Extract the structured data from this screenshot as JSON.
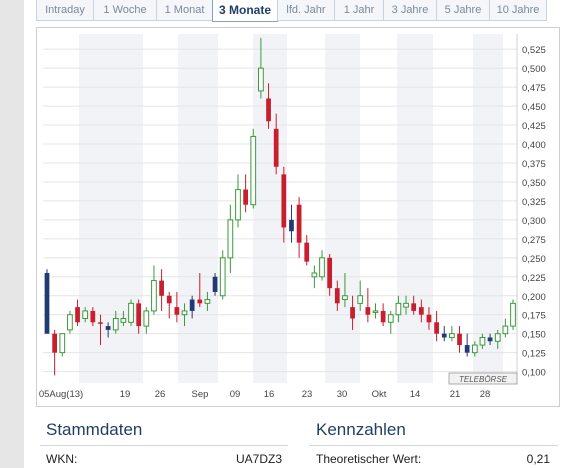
{
  "tabs": [
    {
      "label": "Intraday",
      "active": false
    },
    {
      "label": "1 Woche",
      "active": false
    },
    {
      "label": "1 Monat",
      "active": false
    },
    {
      "label": "3 Monate",
      "active": true
    },
    {
      "label": "lfd. Jahr",
      "active": false
    },
    {
      "label": "1 Jahr",
      "active": false
    },
    {
      "label": "3 Jahre",
      "active": false
    },
    {
      "label": "5 Jahre",
      "active": false
    },
    {
      "label": "10 Jahre",
      "active": false
    }
  ],
  "chart": {
    "watermark": "TELEBÖRSE"
  },
  "chart_data": {
    "type": "candlestick",
    "title": "",
    "xlabel": "",
    "ylabel": "",
    "ylim": [
      0.085,
      0.545
    ],
    "y_ticks": [
      "0,100",
      "0,125",
      "0,150",
      "0,175",
      "0,200",
      "0,225",
      "0,250",
      "0,275",
      "0,300",
      "0,325",
      "0,350",
      "0,375",
      "0,400",
      "0,425",
      "0,450",
      "0,475",
      "0,500",
      "0,525"
    ],
    "x_ticks": [
      "05Aug(13)",
      "19",
      "26",
      "Sep",
      "09",
      "16",
      "23",
      "30",
      "Okt",
      "14",
      "21",
      "28"
    ],
    "colors": {
      "up": "#3a9a3a",
      "down": "#c81e2d",
      "neutral": "#223a73"
    },
    "candles": [
      {
        "o": 0.23,
        "h": 0.235,
        "l": 0.15,
        "c": 0.15,
        "t": "n"
      },
      {
        "o": 0.15,
        "h": 0.155,
        "l": 0.095,
        "c": 0.125,
        "t": "d"
      },
      {
        "o": 0.125,
        "h": 0.15,
        "l": 0.12,
        "c": 0.15,
        "t": "u"
      },
      {
        "o": 0.155,
        "h": 0.18,
        "l": 0.15,
        "c": 0.175,
        "t": "u"
      },
      {
        "o": 0.185,
        "h": 0.195,
        "l": 0.16,
        "c": 0.165,
        "t": "d"
      },
      {
        "o": 0.17,
        "h": 0.185,
        "l": 0.165,
        "c": 0.18,
        "t": "u"
      },
      {
        "o": 0.18,
        "h": 0.185,
        "l": 0.16,
        "c": 0.165,
        "t": "d"
      },
      {
        "o": 0.165,
        "h": 0.175,
        "l": 0.135,
        "c": 0.165,
        "t": "d"
      },
      {
        "o": 0.16,
        "h": 0.165,
        "l": 0.145,
        "c": 0.155,
        "t": "n"
      },
      {
        "o": 0.155,
        "h": 0.18,
        "l": 0.15,
        "c": 0.17,
        "t": "u"
      },
      {
        "o": 0.17,
        "h": 0.18,
        "l": 0.16,
        "c": 0.165,
        "t": "u"
      },
      {
        "o": 0.165,
        "h": 0.195,
        "l": 0.16,
        "c": 0.19,
        "t": "u"
      },
      {
        "o": 0.19,
        "h": 0.195,
        "l": 0.15,
        "c": 0.16,
        "t": "d"
      },
      {
        "o": 0.16,
        "h": 0.185,
        "l": 0.15,
        "c": 0.18,
        "t": "u"
      },
      {
        "o": 0.18,
        "h": 0.24,
        "l": 0.175,
        "c": 0.22,
        "t": "u"
      },
      {
        "o": 0.22,
        "h": 0.235,
        "l": 0.18,
        "c": 0.2,
        "t": "d"
      },
      {
        "o": 0.2,
        "h": 0.205,
        "l": 0.17,
        "c": 0.19,
        "t": "d"
      },
      {
        "o": 0.185,
        "h": 0.205,
        "l": 0.165,
        "c": 0.175,
        "t": "d"
      },
      {
        "o": 0.175,
        "h": 0.19,
        "l": 0.16,
        "c": 0.18,
        "t": "u"
      },
      {
        "o": 0.18,
        "h": 0.2,
        "l": 0.17,
        "c": 0.195,
        "t": "n"
      },
      {
        "o": 0.195,
        "h": 0.23,
        "l": 0.185,
        "c": 0.19,
        "t": "d"
      },
      {
        "o": 0.19,
        "h": 0.205,
        "l": 0.18,
        "c": 0.195,
        "t": "u"
      },
      {
        "o": 0.205,
        "h": 0.23,
        "l": 0.2,
        "c": 0.225,
        "t": "n"
      },
      {
        "o": 0.2,
        "h": 0.26,
        "l": 0.195,
        "c": 0.25,
        "t": "u"
      },
      {
        "o": 0.25,
        "h": 0.32,
        "l": 0.23,
        "c": 0.3,
        "t": "u"
      },
      {
        "o": 0.3,
        "h": 0.36,
        "l": 0.29,
        "c": 0.34,
        "t": "u"
      },
      {
        "o": 0.34,
        "h": 0.36,
        "l": 0.31,
        "c": 0.32,
        "t": "d"
      },
      {
        "o": 0.32,
        "h": 0.42,
        "l": 0.315,
        "c": 0.41,
        "t": "u"
      },
      {
        "o": 0.47,
        "h": 0.54,
        "l": 0.46,
        "c": 0.5,
        "t": "u"
      },
      {
        "o": 0.46,
        "h": 0.48,
        "l": 0.42,
        "c": 0.43,
        "t": "d"
      },
      {
        "o": 0.42,
        "h": 0.44,
        "l": 0.36,
        "c": 0.37,
        "t": "d"
      },
      {
        "o": 0.36,
        "h": 0.37,
        "l": 0.27,
        "c": 0.29,
        "t": "d"
      },
      {
        "o": 0.3,
        "h": 0.32,
        "l": 0.27,
        "c": 0.285,
        "t": "n"
      },
      {
        "o": 0.32,
        "h": 0.33,
        "l": 0.25,
        "c": 0.27,
        "t": "d"
      },
      {
        "o": 0.27,
        "h": 0.28,
        "l": 0.24,
        "c": 0.245,
        "t": "d"
      },
      {
        "o": 0.23,
        "h": 0.24,
        "l": 0.21,
        "c": 0.225,
        "t": "u"
      },
      {
        "o": 0.225,
        "h": 0.26,
        "l": 0.22,
        "c": 0.25,
        "t": "u"
      },
      {
        "o": 0.25,
        "h": 0.255,
        "l": 0.2,
        "c": 0.21,
        "t": "d"
      },
      {
        "o": 0.21,
        "h": 0.22,
        "l": 0.18,
        "c": 0.19,
        "t": "d"
      },
      {
        "o": 0.195,
        "h": 0.23,
        "l": 0.185,
        "c": 0.2,
        "t": "u"
      },
      {
        "o": 0.185,
        "h": 0.2,
        "l": 0.155,
        "c": 0.17,
        "t": "d"
      },
      {
        "o": 0.19,
        "h": 0.22,
        "l": 0.18,
        "c": 0.2,
        "t": "u"
      },
      {
        "o": 0.185,
        "h": 0.21,
        "l": 0.165,
        "c": 0.175,
        "t": "d"
      },
      {
        "o": 0.18,
        "h": 0.19,
        "l": 0.17,
        "c": 0.18,
        "t": "u"
      },
      {
        "o": 0.18,
        "h": 0.19,
        "l": 0.16,
        "c": 0.165,
        "t": "d"
      },
      {
        "o": 0.165,
        "h": 0.18,
        "l": 0.15,
        "c": 0.175,
        "t": "u"
      },
      {
        "o": 0.175,
        "h": 0.2,
        "l": 0.165,
        "c": 0.19,
        "t": "u"
      },
      {
        "o": 0.185,
        "h": 0.2,
        "l": 0.175,
        "c": 0.19,
        "t": "u"
      },
      {
        "o": 0.19,
        "h": 0.2,
        "l": 0.175,
        "c": 0.18,
        "t": "d"
      },
      {
        "o": 0.185,
        "h": 0.195,
        "l": 0.165,
        "c": 0.175,
        "t": "d"
      },
      {
        "o": 0.175,
        "h": 0.185,
        "l": 0.155,
        "c": 0.165,
        "t": "d"
      },
      {
        "o": 0.165,
        "h": 0.18,
        "l": 0.14,
        "c": 0.15,
        "t": "d"
      },
      {
        "o": 0.15,
        "h": 0.16,
        "l": 0.14,
        "c": 0.145,
        "t": "n"
      },
      {
        "o": 0.145,
        "h": 0.16,
        "l": 0.14,
        "c": 0.15,
        "t": "u"
      },
      {
        "o": 0.15,
        "h": 0.16,
        "l": 0.125,
        "c": 0.135,
        "t": "d"
      },
      {
        "o": 0.135,
        "h": 0.15,
        "l": 0.12,
        "c": 0.125,
        "t": "n"
      },
      {
        "o": 0.125,
        "h": 0.14,
        "l": 0.12,
        "c": 0.135,
        "t": "u"
      },
      {
        "o": 0.135,
        "h": 0.15,
        "l": 0.13,
        "c": 0.145,
        "t": "u"
      },
      {
        "o": 0.145,
        "h": 0.15,
        "l": 0.135,
        "c": 0.14,
        "t": "n"
      },
      {
        "o": 0.14,
        "h": 0.155,
        "l": 0.13,
        "c": 0.15,
        "t": "u"
      },
      {
        "o": 0.15,
        "h": 0.17,
        "l": 0.145,
        "c": 0.16,
        "t": "u"
      },
      {
        "o": 0.16,
        "h": 0.195,
        "l": 0.155,
        "c": 0.19,
        "t": "u"
      }
    ]
  },
  "stammdaten": {
    "title": "Stammdaten",
    "label": "WKN:",
    "value": "UA7DZ3"
  },
  "kennzahlen": {
    "title": "Kennzahlen",
    "label": "Theoretischer Wert:",
    "value": "0,21"
  }
}
